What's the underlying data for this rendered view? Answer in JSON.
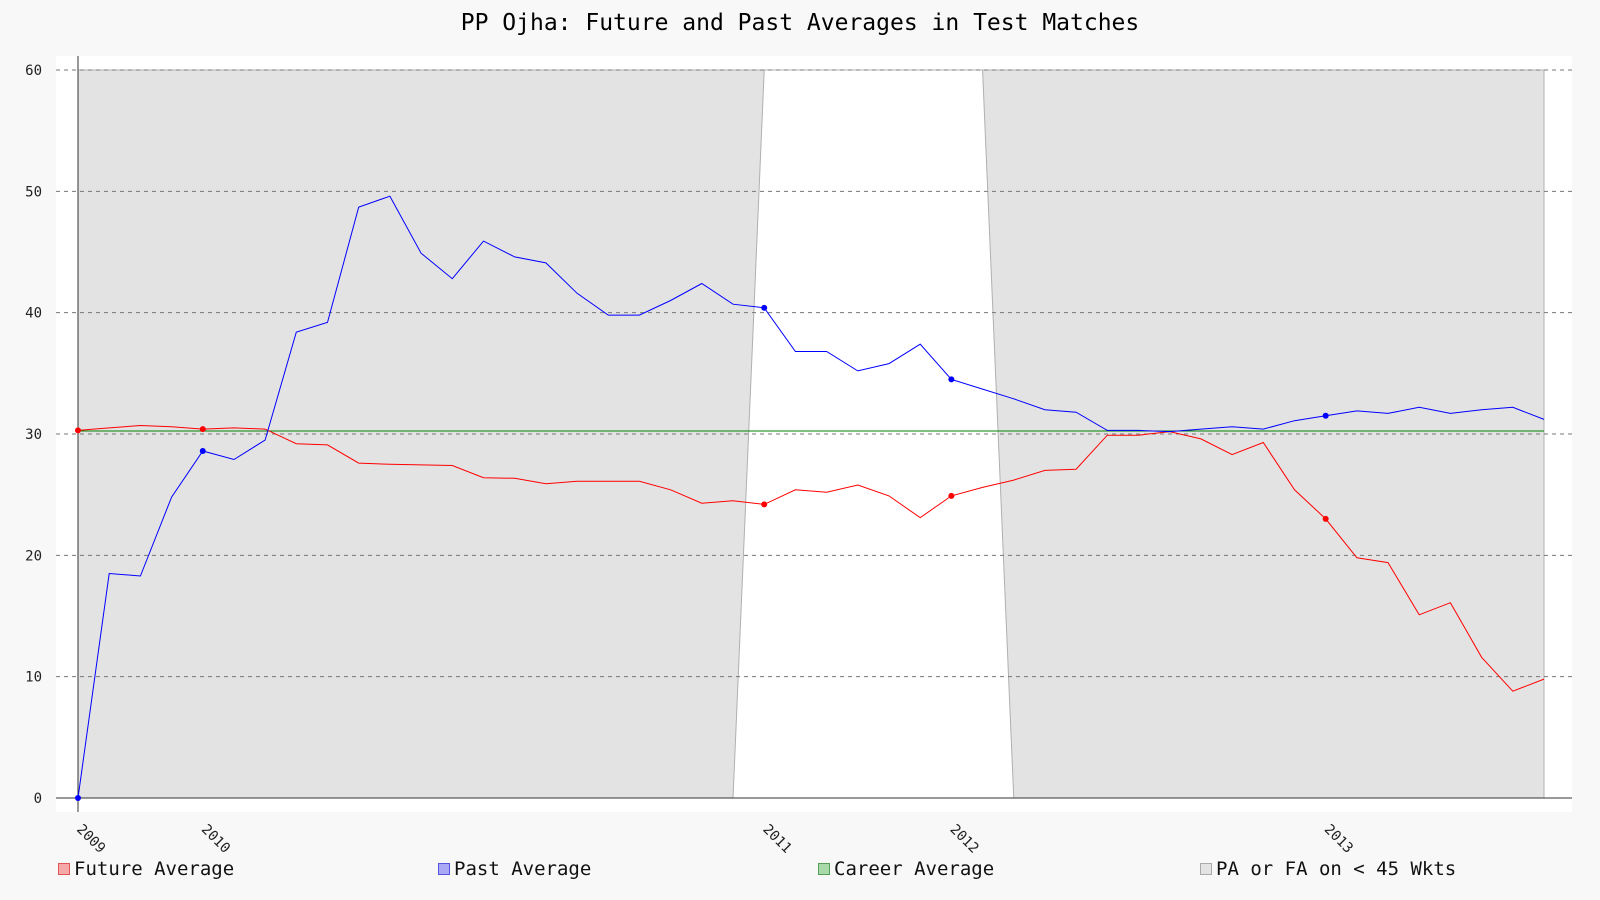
{
  "title": "PP Ojha: Future and Past Averages in Test Matches",
  "colors": {
    "future": "#ff0000",
    "past": "#0000ff",
    "career": "#008000",
    "shade": "#e3e3e3"
  },
  "legend": [
    {
      "label": "Future Average",
      "fill": "#f5a9a9",
      "stroke": "#e05555"
    },
    {
      "label": "Past Average",
      "fill": "#a9a9f5",
      "stroke": "#5555e0"
    },
    {
      "label": "Career Average",
      "fill": "#a9d8a9",
      "stroke": "#55a055"
    },
    {
      "label": "PA or FA on < 45 Wkts",
      "fill": "#e3e3e3",
      "stroke": "#aaaaaa"
    }
  ],
  "chart_data": {
    "type": "line",
    "title": "PP Ojha: Future and Past Averages in Test Matches",
    "xlabel": "",
    "ylabel": "",
    "ylim": [
      0,
      60
    ],
    "yticks": [
      0,
      10,
      20,
      30,
      40,
      50,
      60
    ],
    "grid": true,
    "legend_position": "bottom",
    "match_count": 48,
    "x_tick_labels": [
      {
        "label": "2009",
        "match": 1
      },
      {
        "label": "2010",
        "match": 5
      },
      {
        "label": "2011",
        "match": 23
      },
      {
        "label": "2012",
        "match": 29
      },
      {
        "label": "2013",
        "match": 41
      }
    ],
    "shaded_region": {
      "label": "PA or FA on < 45 Wkts",
      "left_segment": {
        "top_end_match": 23,
        "bottom_end_match": 22
      },
      "right_segment": {
        "top_end_match": 30,
        "bottom_end_match": 31
      }
    },
    "career_average": 30.25,
    "series": [
      {
        "name": "Future Average",
        "values": [
          30.3,
          30.5,
          30.7,
          30.6,
          30.4,
          30.5,
          30.4,
          29.2,
          29.1,
          27.6,
          27.5,
          27.45,
          27.4,
          26.4,
          26.35,
          25.9,
          26.1,
          26.1,
          26.1,
          25.4,
          24.3,
          24.5,
          24.2,
          25.4,
          25.2,
          25.8,
          24.9,
          23.1,
          24.9,
          25.6,
          26.2,
          27.0,
          27.1,
          29.9,
          29.9,
          30.2,
          29.6,
          28.3,
          29.3,
          25.4,
          23.0,
          19.8,
          19.4,
          15.1,
          16.1,
          11.6,
          8.8,
          9.8
        ],
        "markers_at_match": [
          1,
          5,
          23,
          29,
          41
        ]
      },
      {
        "name": "Past Average",
        "values": [
          0,
          18.5,
          18.3,
          24.8,
          28.6,
          27.9,
          29.5,
          38.4,
          39.2,
          48.7,
          49.6,
          44.9,
          42.8,
          45.9,
          44.6,
          44.1,
          41.6,
          39.8,
          39.8,
          41.0,
          42.4,
          40.7,
          40.4,
          36.8,
          36.8,
          35.2,
          35.8,
          37.4,
          34.5,
          33.7,
          32.9,
          32.0,
          31.8,
          30.3,
          30.3,
          30.2,
          30.4,
          30.6,
          30.4,
          31.1,
          31.5,
          31.9,
          31.7,
          32.2,
          31.7,
          32.0,
          32.2,
          31.2
        ],
        "markers_at_match": [
          1,
          5,
          23,
          29,
          41
        ]
      }
    ]
  }
}
